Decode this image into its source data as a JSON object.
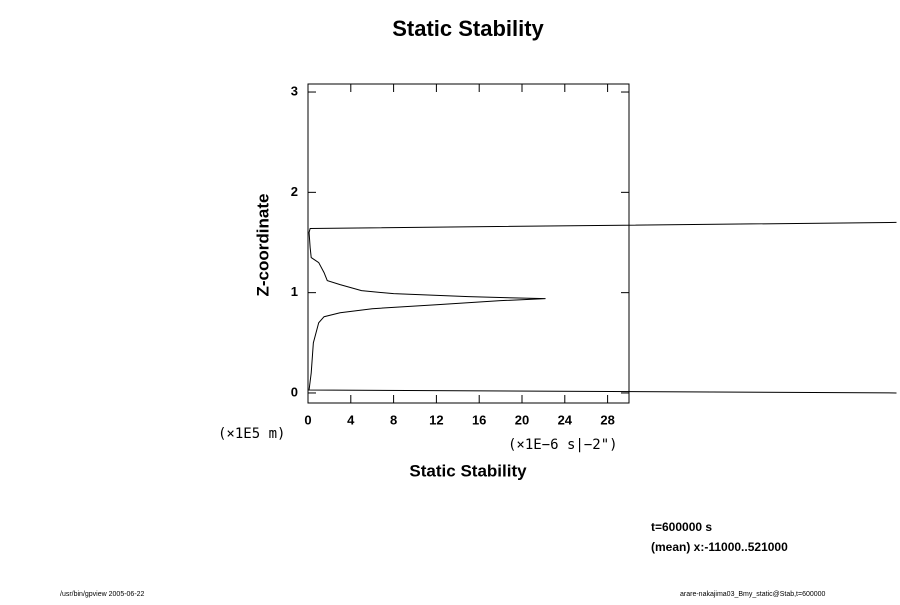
{
  "chart_data": {
    "type": "line",
    "title": "Static Stability",
    "xlabel": "Static Stability",
    "ylabel": "Z-coordinate",
    "x_unit": "(×1E−6 s|−2\")",
    "y_unit": "(×1E5 m)",
    "annotations": [
      "t=600000 s",
      "(mean) x:-11000..521000"
    ],
    "footer_left": "/usr/bin/gpview 2005-06-22",
    "footer_right": "arare-nakajima03_Bmy_static@Stab,t=600000",
    "xlim": [
      0,
      30
    ],
    "ylim": [
      -0.1,
      3.08
    ],
    "xticks": [
      0,
      4,
      8,
      12,
      16,
      20,
      24,
      28
    ],
    "yticks": [
      0,
      1,
      2,
      3
    ],
    "series": [
      {
        "name": "Static Stability",
        "color": "#000000",
        "x": [
          55,
          0.1,
          0.3,
          0.5,
          1,
          1.5,
          3,
          6,
          12,
          18,
          22.2,
          15,
          8,
          5,
          3,
          1.8,
          1.5,
          1,
          0.3,
          0.2,
          0.1,
          0.2,
          55
        ],
        "values": [
          0.0,
          0.03,
          0.2,
          0.5,
          0.7,
          0.76,
          0.8,
          0.84,
          0.88,
          0.92,
          0.94,
          0.96,
          0.99,
          1.02,
          1.08,
          1.12,
          1.2,
          1.3,
          1.35,
          1.45,
          1.6,
          1.64,
          1.7
        ]
      }
    ]
  }
}
